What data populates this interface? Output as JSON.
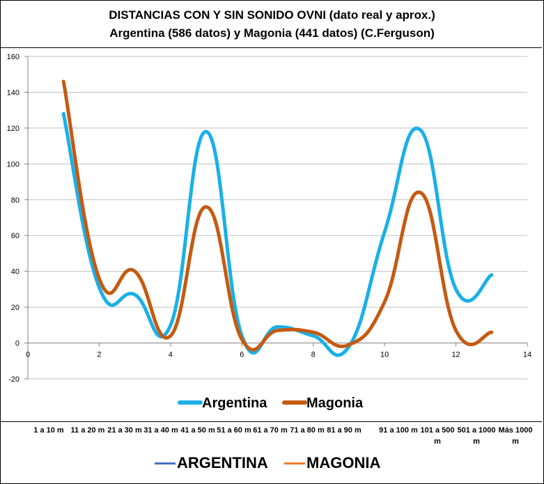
{
  "title": {
    "line1": "DISTANCIAS CON Y SIN SONIDO OVNI  (dato real y aprox.)",
    "line2": "Argentina (586 datos) y Magonia (441 datos) (C.Ferguson)"
  },
  "chart_data": {
    "type": "line",
    "x_ticks": [
      0,
      2,
      4,
      6,
      8,
      10,
      12,
      14
    ],
    "y_ticks": [
      -20,
      0,
      20,
      40,
      60,
      80,
      100,
      120,
      140,
      160
    ],
    "xlim": [
      0,
      14
    ],
    "ylim": [
      -20,
      160
    ],
    "grid": "horizontal",
    "legend_position": "bottom",
    "x": [
      1,
      2,
      3,
      4,
      5,
      6,
      7,
      8,
      9,
      10,
      11,
      12,
      13
    ],
    "series": [
      {
        "name": "Argentina",
        "color": "#1ab0e8",
        "values": [
          128,
          31,
          27,
          10,
          118,
          4,
          9,
          4,
          -2,
          62,
          119,
          30,
          38
        ]
      },
      {
        "name": "Magonia",
        "color": "#c55a11",
        "values": [
          146,
          36,
          40,
          4,
          76,
          2,
          7,
          6,
          -1,
          23,
          84,
          7,
          6
        ]
      }
    ]
  },
  "categories": [
    "1 a 10 m",
    "11 a 20 m",
    "21 a 30 m",
    "31 a 40 m",
    "41 a 50 m",
    "51 a 60 m",
    "61 a 70 m",
    "71 a 80 m",
    "81 a 90 m",
    "91 a 100 m",
    "101 a 500 m",
    "501 a 1000 m",
    "Más 1000 m"
  ],
  "legend2": [
    {
      "label": "ARGENTINA",
      "color": "#4472c4"
    },
    {
      "label": "MAGONIA",
      "color": "#ed7d31"
    }
  ]
}
